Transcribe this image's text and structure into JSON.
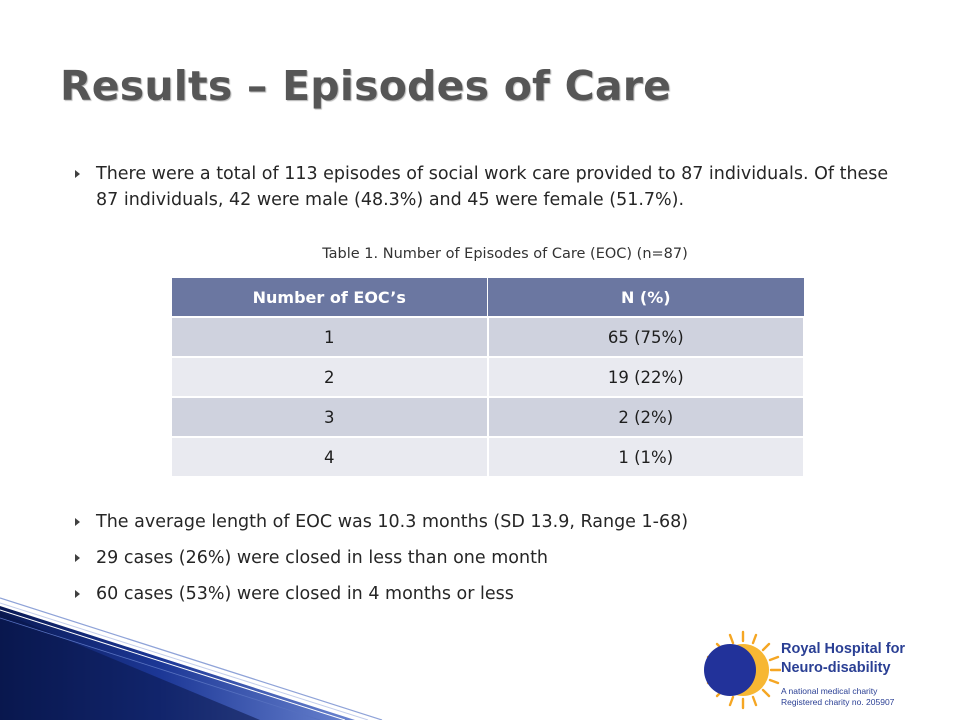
{
  "slide": {
    "title": "Results – Episodes of Care",
    "intro_bullets": [
      "There were a total of 113 episodes of social work care provided to 87 individuals. Of these 87 individuals, 42 were male (48.3%) and 45 were female (51.7%)."
    ],
    "table_caption": "Table 1. Number of Episodes of Care (EOC) (n=87)",
    "table": {
      "headers": [
        "Number of EOC’s",
        "N (%)"
      ],
      "rows": [
        [
          "1",
          "65 (75%)"
        ],
        [
          "2",
          "19 (22%)"
        ],
        [
          "3",
          "2 (2%)"
        ],
        [
          "4",
          "1 (1%)"
        ]
      ]
    },
    "summary_bullets": [
      "The average length of EOC was 10.3 months (SD 13.9, Range 1-68)",
      "29 cases (26%) were closed in less than one month",
      "60 cases (53%) were closed in 4 months or less"
    ]
  },
  "logo": {
    "name_line1": "Royal Hospital for",
    "name_line2": "Neuro-disability",
    "tagline_line1": "A national medical charity",
    "tagline_line2": "Registered charity no. 205907"
  },
  "colors": {
    "table_header": "#6b77a1",
    "row_dark": "#cfd2de",
    "row_light": "#e9eaf0",
    "title": "#565656",
    "logo_blue": "#2a3f94",
    "logo_sun": "#f5a623"
  }
}
